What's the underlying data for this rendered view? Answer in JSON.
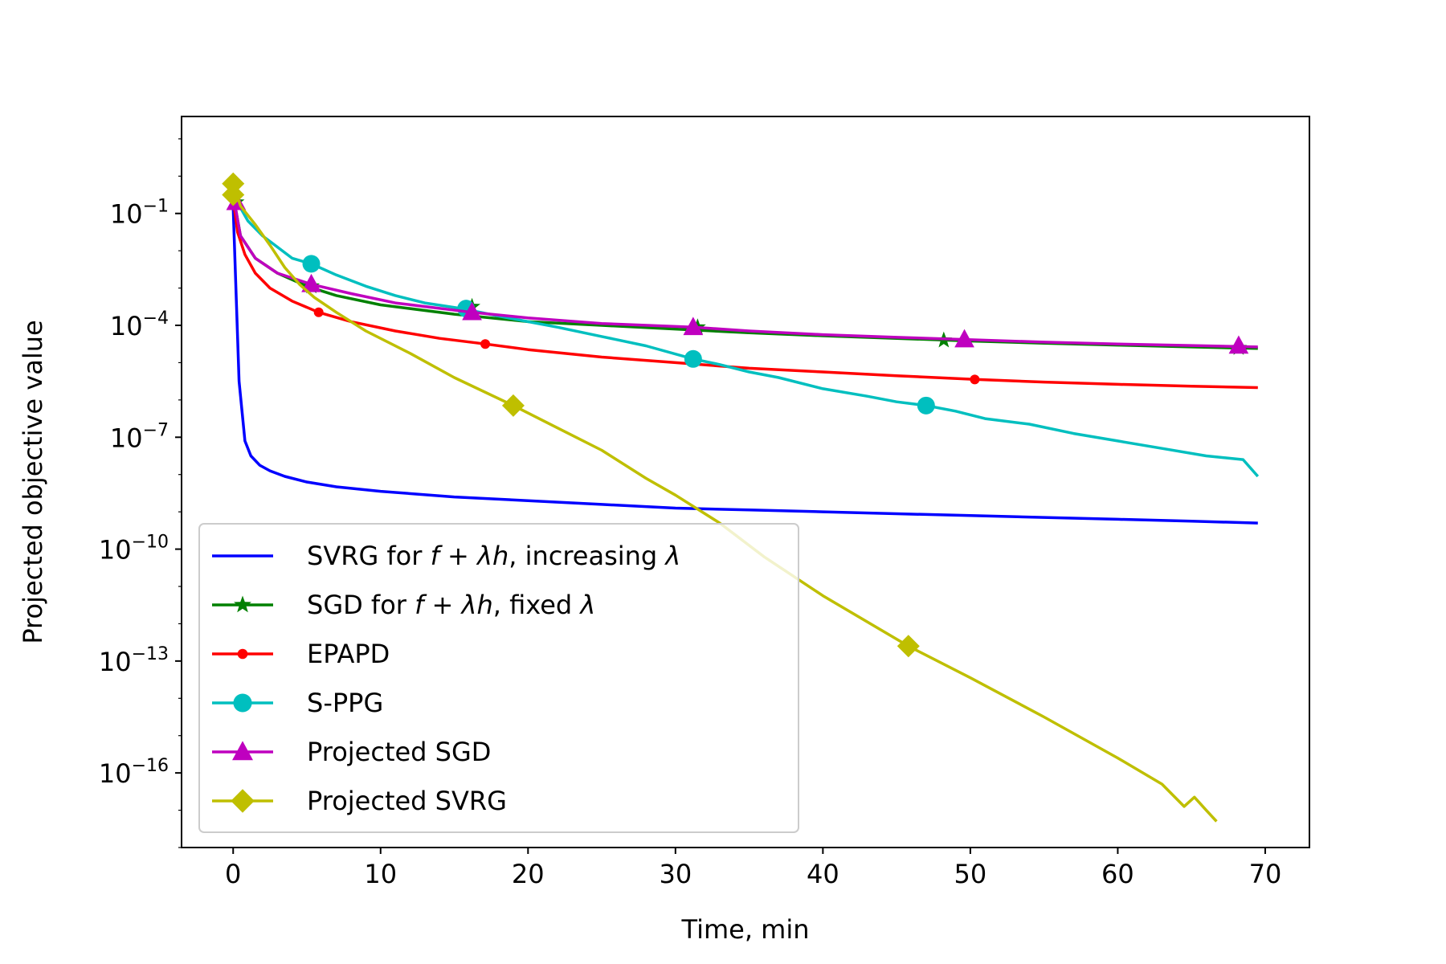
{
  "chart_data": {
    "type": "line",
    "title": "",
    "xlabel": "Time, min",
    "ylabel": "Projected objective value",
    "xlim": [
      -3.5,
      73
    ],
    "ylim_log10": [
      -18.0,
      1.6
    ],
    "x_ticks": [
      0,
      10,
      20,
      30,
      40,
      50,
      60,
      70
    ],
    "y_ticks": [
      {
        "exp": -1,
        "base": "10",
        "sup": "−1"
      },
      {
        "exp": -4,
        "base": "10",
        "sup": "−4"
      },
      {
        "exp": -7,
        "base": "10",
        "sup": "−7"
      },
      {
        "exp": -10,
        "base": "10",
        "sup": "−10"
      },
      {
        "exp": -13,
        "base": "10",
        "sup": "−13"
      },
      {
        "exp": -16,
        "base": "10",
        "sup": "−16"
      }
    ],
    "yscale": "log",
    "grid": false,
    "legend_position": "lower-left",
    "series": [
      {
        "name": "SVRG for f + λh, increasing λ",
        "legend_parts": [
          "SVRG for ",
          "f",
          " + ",
          "λh",
          ", increasing ",
          "λ"
        ],
        "color": "#0000ff",
        "marker": "none",
        "points": [
          [
            0,
            -0.8
          ],
          [
            0.4,
            -5.5
          ],
          [
            0.8,
            -7.1
          ],
          [
            1.2,
            -7.5
          ],
          [
            1.8,
            -7.75
          ],
          [
            2.5,
            -7.9
          ],
          [
            3.5,
            -8.05
          ],
          [
            5,
            -8.2
          ],
          [
            7,
            -8.33
          ],
          [
            10,
            -8.45
          ],
          [
            15,
            -8.6
          ],
          [
            20,
            -8.7
          ],
          [
            25,
            -8.8
          ],
          [
            30,
            -8.9
          ],
          [
            35,
            -8.95
          ],
          [
            40,
            -9.0
          ],
          [
            45,
            -9.05
          ],
          [
            50,
            -9.1
          ],
          [
            55,
            -9.15
          ],
          [
            60,
            -9.2
          ],
          [
            65,
            -9.25
          ],
          [
            69.5,
            -9.3
          ]
        ],
        "marker_points": []
      },
      {
        "name": "SGD for f + λh, fixed λ",
        "legend_parts": [
          "SGD for ",
          "f",
          " + ",
          "λh",
          ", fixed ",
          "λ"
        ],
        "color": "#008000",
        "marker": "star",
        "points": [
          [
            0,
            -0.5
          ],
          [
            0.5,
            -1.6
          ],
          [
            1.5,
            -2.2
          ],
          [
            3,
            -2.6
          ],
          [
            5,
            -2.95
          ],
          [
            7,
            -3.2
          ],
          [
            10,
            -3.45
          ],
          [
            15,
            -3.7
          ],
          [
            20,
            -3.9
          ],
          [
            25,
            -4.0
          ],
          [
            30,
            -4.1
          ],
          [
            35,
            -4.2
          ],
          [
            40,
            -4.28
          ],
          [
            45,
            -4.35
          ],
          [
            50,
            -4.42
          ],
          [
            55,
            -4.48
          ],
          [
            60,
            -4.53
          ],
          [
            65,
            -4.58
          ],
          [
            69.5,
            -4.62
          ]
        ],
        "marker_points": [
          [
            0.2,
            -0.7
          ],
          [
            5.3,
            -2.95
          ],
          [
            16.2,
            -3.5
          ],
          [
            31.5,
            -4.05
          ],
          [
            48.2,
            -4.4
          ],
          [
            68.2,
            -4.6
          ]
        ]
      },
      {
        "name": "EPAPD",
        "legend_parts": [
          "EPAPD"
        ],
        "color": "#ff0000",
        "marker": "dot",
        "points": [
          [
            0,
            -0.6
          ],
          [
            0.3,
            -1.5
          ],
          [
            0.8,
            -2.1
          ],
          [
            1.5,
            -2.6
          ],
          [
            2.5,
            -3.0
          ],
          [
            4,
            -3.35
          ],
          [
            5.8,
            -3.65
          ],
          [
            8,
            -3.9
          ],
          [
            11,
            -4.15
          ],
          [
            14,
            -4.35
          ],
          [
            17.1,
            -4.5
          ],
          [
            20,
            -4.65
          ],
          [
            25,
            -4.85
          ],
          [
            30,
            -5.0
          ],
          [
            35,
            -5.15
          ],
          [
            40,
            -5.25
          ],
          [
            45,
            -5.35
          ],
          [
            50.3,
            -5.45
          ],
          [
            55,
            -5.52
          ],
          [
            60,
            -5.58
          ],
          [
            65,
            -5.63
          ],
          [
            69.5,
            -5.67
          ]
        ],
        "marker_points": [
          [
            5.8,
            -3.65
          ],
          [
            17.1,
            -4.5
          ],
          [
            50.3,
            -5.45
          ]
        ]
      },
      {
        "name": "S-PPG",
        "legend_parts": [
          "S-PPG"
        ],
        "color": "#00bfbf",
        "marker": "circle",
        "points": [
          [
            0,
            -0.5
          ],
          [
            1,
            -1.2
          ],
          [
            2,
            -1.6
          ],
          [
            3,
            -1.9
          ],
          [
            4,
            -2.2
          ],
          [
            5.3,
            -2.35
          ],
          [
            7,
            -2.65
          ],
          [
            9,
            -2.95
          ],
          [
            11,
            -3.2
          ],
          [
            13,
            -3.4
          ],
          [
            15.5,
            -3.55
          ],
          [
            18,
            -3.75
          ],
          [
            20,
            -3.9
          ],
          [
            22,
            -4.05
          ],
          [
            25,
            -4.3
          ],
          [
            28,
            -4.55
          ],
          [
            31.2,
            -4.9
          ],
          [
            33,
            -5.05
          ],
          [
            35,
            -5.25
          ],
          [
            37,
            -5.4
          ],
          [
            40,
            -5.7
          ],
          [
            43,
            -5.9
          ],
          [
            45,
            -6.05
          ],
          [
            47,
            -6.15
          ],
          [
            49,
            -6.3
          ],
          [
            51,
            -6.5
          ],
          [
            54,
            -6.65
          ],
          [
            57,
            -6.9
          ],
          [
            60,
            -7.1
          ],
          [
            63,
            -7.3
          ],
          [
            66,
            -7.5
          ],
          [
            68.5,
            -7.6
          ],
          [
            69.5,
            -8.05
          ]
        ],
        "marker_points": [
          [
            5.3,
            -2.35
          ],
          [
            15.8,
            -3.55
          ],
          [
            31.2,
            -4.9
          ],
          [
            47,
            -6.15
          ]
        ]
      },
      {
        "name": "Projected SGD",
        "legend_parts": [
          "Projected SGD"
        ],
        "color": "#bf00bf",
        "marker": "triangle",
        "points": [
          [
            0,
            -0.5
          ],
          [
            0.5,
            -1.6
          ],
          [
            1.5,
            -2.2
          ],
          [
            3,
            -2.6
          ],
          [
            5.3,
            -2.9
          ],
          [
            8,
            -3.15
          ],
          [
            11,
            -3.4
          ],
          [
            16.2,
            -3.65
          ],
          [
            20,
            -3.8
          ],
          [
            25,
            -3.95
          ],
          [
            31.2,
            -4.05
          ],
          [
            35,
            -4.15
          ],
          [
            40,
            -4.25
          ],
          [
            45,
            -4.32
          ],
          [
            49.6,
            -4.38
          ],
          [
            55,
            -4.45
          ],
          [
            60,
            -4.5
          ],
          [
            65,
            -4.54
          ],
          [
            69.5,
            -4.58
          ]
        ],
        "marker_points": [
          [
            0.2,
            -0.7
          ],
          [
            5.3,
            -2.9
          ],
          [
            16.2,
            -3.65
          ],
          [
            31.2,
            -4.05
          ],
          [
            49.6,
            -4.38
          ],
          [
            68.2,
            -4.55
          ]
        ]
      },
      {
        "name": "Projected SVRG",
        "legend_parts": [
          "Projected SVRG"
        ],
        "color": "#bfbf00",
        "marker": "diamond",
        "points": [
          [
            0,
            -0.2
          ],
          [
            0.5,
            -0.8
          ],
          [
            1.5,
            -1.3
          ],
          [
            2.5,
            -1.85
          ],
          [
            3.5,
            -2.45
          ],
          [
            4.5,
            -2.9
          ],
          [
            5.5,
            -3.25
          ],
          [
            7,
            -3.65
          ],
          [
            9,
            -4.15
          ],
          [
            12,
            -4.75
          ],
          [
            15,
            -5.4
          ],
          [
            19,
            -6.15
          ],
          [
            22,
            -6.75
          ],
          [
            25,
            -7.35
          ],
          [
            28,
            -8.1
          ],
          [
            30,
            -8.55
          ],
          [
            33,
            -9.3
          ],
          [
            36,
            -10.2
          ],
          [
            40,
            -11.25
          ],
          [
            45.8,
            -12.6
          ],
          [
            50,
            -13.45
          ],
          [
            55,
            -14.5
          ],
          [
            60,
            -15.6
          ],
          [
            63,
            -16.3
          ],
          [
            64.5,
            -16.9
          ],
          [
            65.2,
            -16.65
          ],
          [
            66,
            -17.0
          ],
          [
            66.7,
            -17.3
          ]
        ],
        "marker_points": [
          [
            0,
            -0.2
          ],
          [
            0,
            -0.5
          ],
          [
            19,
            -6.15
          ],
          [
            45.8,
            -12.6
          ]
        ]
      }
    ]
  }
}
